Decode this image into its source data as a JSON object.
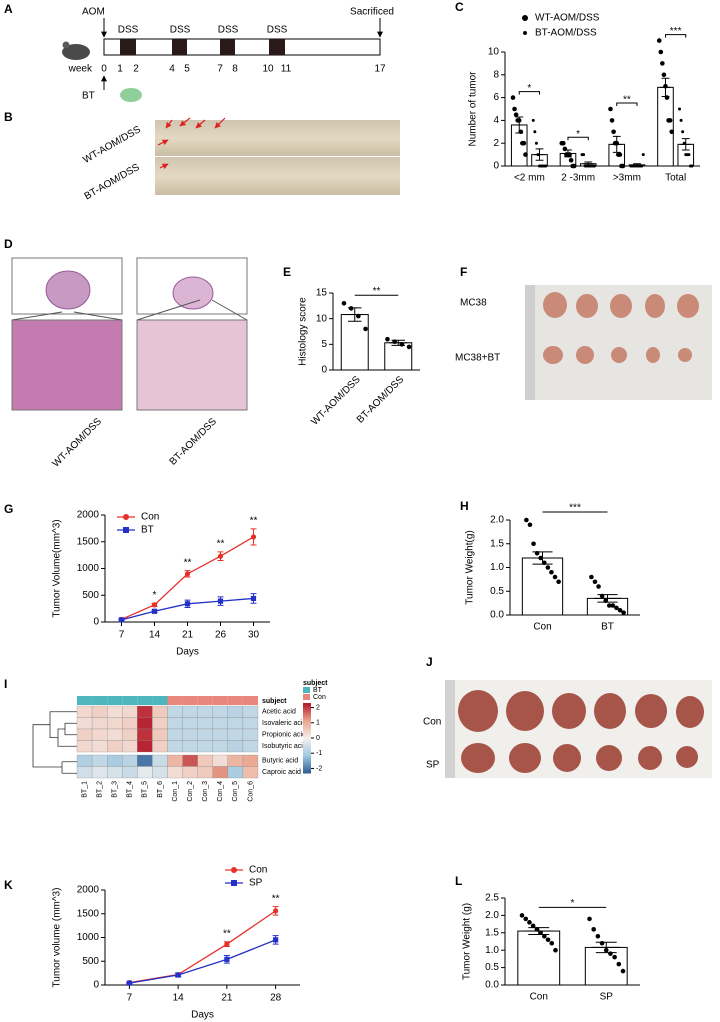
{
  "timeline": {
    "panel": "A",
    "start": "AOM",
    "dss_labels": [
      "DSS",
      "DSS",
      "DSS",
      "DSS"
    ],
    "week_label": "week",
    "weeks": [
      0,
      1,
      2,
      4,
      5,
      7,
      8,
      10,
      11,
      17
    ],
    "end": "Sacrificed",
    "bt": "BT"
  },
  "colon": {
    "panel": "B",
    "labels": [
      "WT-AOM/DSS",
      "BT-AOM/DSS"
    ]
  },
  "histology": {
    "panel": "D",
    "labels": [
      "WT-AOM/DSS",
      "BT-AOM/DSS"
    ]
  },
  "mc38": {
    "panel": "F",
    "labels": [
      "MC38",
      "MC38+BT"
    ]
  },
  "sp_tumors": {
    "panel": "J",
    "labels": [
      "Con",
      "SP"
    ]
  },
  "chart_data": [
    {
      "type": "bar",
      "panel": "C",
      "ylabel": "Number of tumor",
      "categories": [
        "<2 mm",
        "2 -3mm",
        ">3mm",
        "Total"
      ],
      "ylim": [
        0,
        10
      ],
      "yticks": [
        0,
        2,
        4,
        6,
        8,
        10
      ],
      "bar_fill": "#ffffff",
      "legend": "top",
      "series": [
        {
          "name": "WT-AOM/DSS",
          "color": "#000000",
          "marker_size": 2.3,
          "values": [
            3.6,
            1.1,
            1.9,
            6.9
          ],
          "errors": [
            0.7,
            0.3,
            0.7,
            0.8
          ],
          "points": [
            [
              6,
              5,
              4.5,
              4,
              4,
              3,
              2,
              2,
              1
            ],
            [
              2,
              2,
              1.5,
              1,
              1,
              1,
              0.5,
              0,
              0
            ],
            [
              5,
              4,
              3,
              2,
              2,
              1,
              1,
              0,
              0
            ],
            [
              11,
              10,
              9,
              8,
              7,
              6,
              4,
              4,
              3
            ]
          ]
        },
        {
          "name": "BT-AOM/DSS",
          "color": "#000000",
          "marker_size": 1.5,
          "values": [
            1.0,
            0.2,
            0.1,
            1.9
          ],
          "errors": [
            0.5,
            0.15,
            0.1,
            0.5
          ],
          "points": [
            [
              4,
              3,
              2,
              1,
              0,
              0,
              0,
              0,
              0
            ],
            [
              1,
              1,
              0,
              0,
              0,
              0,
              0,
              0,
              0
            ],
            [
              0,
              0,
              0,
              0,
              0,
              0,
              0,
              0,
              1
            ],
            [
              5,
              4,
              3,
              2,
              1,
              1,
              1,
              0,
              0
            ]
          ]
        }
      ],
      "significance": [
        "*",
        "*",
        "**",
        "***"
      ]
    },
    {
      "type": "bar",
      "panel": "E",
      "ylabel": "Histology score",
      "categories": [
        "WT-AOM/DSS",
        "BT-AOM/DSS"
      ],
      "ylim": [
        0,
        15
      ],
      "yticks": [
        0,
        5,
        10,
        15
      ],
      "bar_fill": "#ffffff",
      "xtick_rotation": 45,
      "series": [
        {
          "color": "#000000",
          "marker_size": 2.3,
          "values": [
            10.8,
            5.3
          ],
          "errors": [
            1.3,
            0.5
          ],
          "points": [
            [
              13,
              12,
              10.5,
              8
            ],
            [
              6,
              5.5,
              5,
              4.5
            ]
          ]
        }
      ],
      "significance": "**"
    },
    {
      "type": "line",
      "panel": "G",
      "ylabel": "Tumor  Volume(mm^3)",
      "xlabel": "Days",
      "categories": [
        "7",
        "14",
        "21",
        "26",
        "30"
      ],
      "ylim": [
        0,
        2000
      ],
      "yticks": [
        0,
        500,
        1000,
        1500,
        2000
      ],
      "legend": "upper left",
      "series": [
        {
          "name": "Con",
          "color": "#e8302a",
          "marker": "circle",
          "values": [
            50,
            320,
            900,
            1230,
            1590
          ],
          "errors": [
            10,
            30,
            60,
            80,
            150
          ]
        },
        {
          "name": "BT",
          "color": "#2430c8",
          "marker": "square",
          "values": [
            40,
            200,
            340,
            390,
            440
          ],
          "errors": [
            10,
            20,
            70,
            80,
            90
          ]
        }
      ],
      "significance": [
        null,
        "*",
        "**",
        "**",
        "**"
      ]
    },
    {
      "type": "bar",
      "panel": "H",
      "ylabel": "Tumor  Weight(g)",
      "categories": [
        "Con",
        "BT"
      ],
      "ylim": [
        0,
        2.0
      ],
      "yticks": [
        {
          "value": 0,
          "label": "0.0"
        },
        0.5,
        {
          "value": 1,
          "label": "1.0"
        },
        1.5,
        {
          "value": 2,
          "label": "2.0"
        }
      ],
      "bar_fill": "#ffffff",
      "series": [
        {
          "color": "#000000",
          "marker_size": 2.3,
          "values": [
            1.2,
            0.35
          ],
          "errors": [
            0.13,
            0.08
          ],
          "points": [
            [
              2.0,
              1.9,
              1.5,
              1.3,
              1.2,
              1.1,
              1.0,
              0.9,
              0.8,
              0.7
            ],
            [
              0.8,
              0.7,
              0.6,
              0.4,
              0.3,
              0.2,
              0.2,
              0.15,
              0.1,
              0.05
            ]
          ]
        }
      ],
      "significance": "***"
    },
    {
      "type": "heatmap",
      "panel": "I",
      "annotation_label": "subject",
      "legend_title": "subject",
      "rows": [
        "Acetic acid",
        "Isovaleric acid",
        "Propionic acid",
        "Isobutyric acid",
        "Butyric acid",
        "Caproic acid"
      ],
      "row_split": 4,
      "columns": [
        "BT_1",
        "BT_2",
        "BT_3",
        "BT_4",
        "BT_5",
        "BT_6",
        "Con_1",
        "Con_2",
        "Con_3",
        "Con_4",
        "Con_5",
        "Con_6"
      ],
      "groups": [
        {
          "name": "BT",
          "color": "#4fb6c0"
        },
        {
          "name": "Con",
          "color": "#e8877c"
        }
      ],
      "column_groups": [
        0,
        0,
        0,
        0,
        0,
        0,
        1,
        1,
        1,
        1,
        1,
        1
      ],
      "colorscale": [
        "#2b5a93",
        "#9fc6df",
        "#f4f1ef",
        "#eba68f",
        "#b2182b"
      ],
      "zlim": [
        -2.3,
        2.3
      ],
      "zticks": [
        -2,
        -1,
        0,
        1,
        2
      ],
      "values": [
        [
          0.4,
          0.5,
          0.3,
          0.4,
          2.1,
          0.6,
          -0.7,
          -0.7,
          -0.7,
          -0.7,
          -0.8,
          -0.7
        ],
        [
          0.3,
          0.4,
          0.4,
          0.5,
          2.2,
          0.5,
          -0.7,
          -0.7,
          -0.7,
          -0.7,
          -0.7,
          -0.7
        ],
        [
          0.5,
          0.4,
          0.3,
          0.5,
          2.1,
          0.6,
          -0.7,
          -0.7,
          -0.7,
          -0.7,
          -0.7,
          -0.7
        ],
        [
          0.4,
          0.3,
          0.5,
          0.4,
          2.2,
          0.5,
          -0.7,
          -0.7,
          -0.7,
          -0.7,
          -0.8,
          -0.7
        ],
        [
          -0.9,
          -0.7,
          -1.0,
          -0.8,
          -2.0,
          -0.6,
          0.9,
          1.8,
          0.6,
          0.3,
          0.9,
          1.1
        ],
        [
          -0.5,
          -0.3,
          -0.4,
          -0.6,
          -0.2,
          -0.4,
          0.3,
          0.5,
          0.6,
          1.3,
          -1.0,
          0.8
        ]
      ]
    },
    {
      "type": "line",
      "panel": "K",
      "ylabel": "Tumor volume (mm^3)",
      "xlabel": "Days",
      "categories": [
        "7",
        "14",
        "21",
        "28"
      ],
      "ylim": [
        0,
        2000
      ],
      "yticks": [
        0,
        500,
        1000,
        1500,
        2000
      ],
      "legend": "upper right",
      "series": [
        {
          "name": "Con",
          "color": "#e8302a",
          "marker": "circle",
          "values": [
            50,
            220,
            860,
            1560
          ],
          "errors": [
            10,
            30,
            50,
            90
          ]
        },
        {
          "name": "SP",
          "color": "#2430c8",
          "marker": "square",
          "values": [
            40,
            210,
            540,
            950
          ],
          "errors": [
            10,
            40,
            80,
            90
          ]
        }
      ],
      "significance": [
        null,
        null,
        "**",
        "**"
      ]
    },
    {
      "type": "bar",
      "panel": "L",
      "ylabel": "Tumor Weight (g)",
      "categories": [
        "Con",
        "SP"
      ],
      "ylim": [
        0,
        2.5
      ],
      "yticks": [
        {
          "value": 0,
          "label": "0.0"
        },
        0.5,
        {
          "value": 1,
          "label": "1.0"
        },
        1.5,
        {
          "value": 2,
          "label": "2.0"
        },
        2.5
      ],
      "bar_fill": "#ffffff",
      "series": [
        {
          "color": "#000000",
          "marker_size": 2.3,
          "values": [
            1.55,
            1.08
          ],
          "errors": [
            0.1,
            0.15
          ],
          "points": [
            [
              2.0,
              1.9,
              1.8,
              1.7,
              1.6,
              1.5,
              1.4,
              1.3,
              1.2,
              1.0
            ],
            [
              1.9,
              1.6,
              1.4,
              1.2,
              1.0,
              0.9,
              0.8,
              0.6,
              0.4
            ]
          ]
        }
      ],
      "significance": "*"
    }
  ]
}
